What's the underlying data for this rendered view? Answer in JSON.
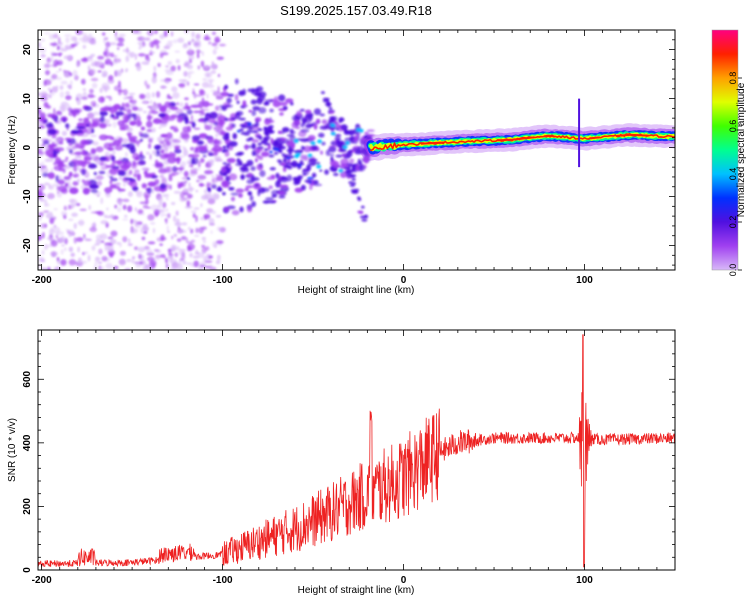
{
  "title": "S199.2025.157.03.49.R18",
  "chart_data": [
    {
      "type": "heatmap",
      "title": "S199.2025.157.03.49.R18",
      "xlabel": "Height of straight line (km)",
      "ylabel": "Frequency (Hz)",
      "xlim": [
        -202,
        150
      ],
      "ylim": [
        -25,
        24
      ],
      "xticks": [
        -200,
        -100,
        0,
        100
      ],
      "xtick_labels": [
        "-200",
        "-100",
        "0",
        "100"
      ],
      "yticks": [
        -20,
        -10,
        0,
        10,
        20
      ],
      "ytick_labels": [
        "-20",
        "-10",
        "0",
        "10",
        "20"
      ],
      "colorbar": {
        "label": "Normalized spectral amplitude",
        "range": [
          0,
          1
        ],
        "ticks": [
          0,
          0.2,
          0.4,
          0.6,
          0.8
        ],
        "tick_labels": [
          "0.0",
          "0.2",
          "0.4",
          "0.6",
          "0.8"
        ],
        "colormap": [
          "#d8b8f8",
          "#a040f0",
          "#5010e0",
          "#0030ff",
          "#00c0ff",
          "#00ff90",
          "#40ff00",
          "#e0ff00",
          "#ffa000",
          "#ff2000",
          "#ff0080"
        ]
      },
      "features": {
        "noise_region": "x from -202 to -100 km: scattered low-amplitude violet speckle over all frequencies",
        "chirp_region": "x from -100 to -20 km: violet/blue patches converging toward 0 Hz",
        "carrier": [
          {
            "x": -2,
            "y": 0.5
          },
          {
            "x": 20,
            "y": 1.0
          },
          {
            "x": 60,
            "y": 1.6
          },
          {
            "x": 80,
            "y": 2.4
          },
          {
            "x": 100,
            "y": 1.8
          },
          {
            "x": 125,
            "y": 2.6
          },
          {
            "x": 150,
            "y": 2.2
          }
        ]
      }
    },
    {
      "type": "line",
      "xlabel": "Height of straight line (km)",
      "ylabel": "SNR (10 * v/v)",
      "xlim": [
        -202,
        150
      ],
      "ylim": [
        0,
        755
      ],
      "xticks": [
        -200,
        -100,
        0,
        100
      ],
      "xtick_labels": [
        "-200",
        "-100",
        "0",
        "100"
      ],
      "yticks": [
        0,
        200,
        400,
        600
      ],
      "ytick_labels": [
        "0",
        "200",
        "400",
        "600"
      ],
      "series": [
        {
          "name": "SNR",
          "color": "#ee2222",
          "envelope": [
            {
              "x": -202,
              "y": 20
            },
            {
              "x": -150,
              "y": 25
            },
            {
              "x": -120,
              "y": 40
            },
            {
              "x": -100,
              "y": 50
            },
            {
              "x": -80,
              "y": 90
            },
            {
              "x": -60,
              "y": 130
            },
            {
              "x": -40,
              "y": 180
            },
            {
              "x": -20,
              "y": 240
            },
            {
              "x": 0,
              "y": 290
            },
            {
              "x": 10,
              "y": 330
            },
            {
              "x": 20,
              "y": 370
            },
            {
              "x": 30,
              "y": 400
            },
            {
              "x": 50,
              "y": 415
            },
            {
              "x": 95,
              "y": 415
            },
            {
              "x": 110,
              "y": 410
            },
            {
              "x": 150,
              "y": 415
            }
          ],
          "spikes": [
            {
              "x": -18,
              "y": 505
            },
            {
              "x": 99,
              "y": 740
            },
            {
              "x": 100,
              "y": 10
            }
          ]
        }
      ]
    }
  ]
}
